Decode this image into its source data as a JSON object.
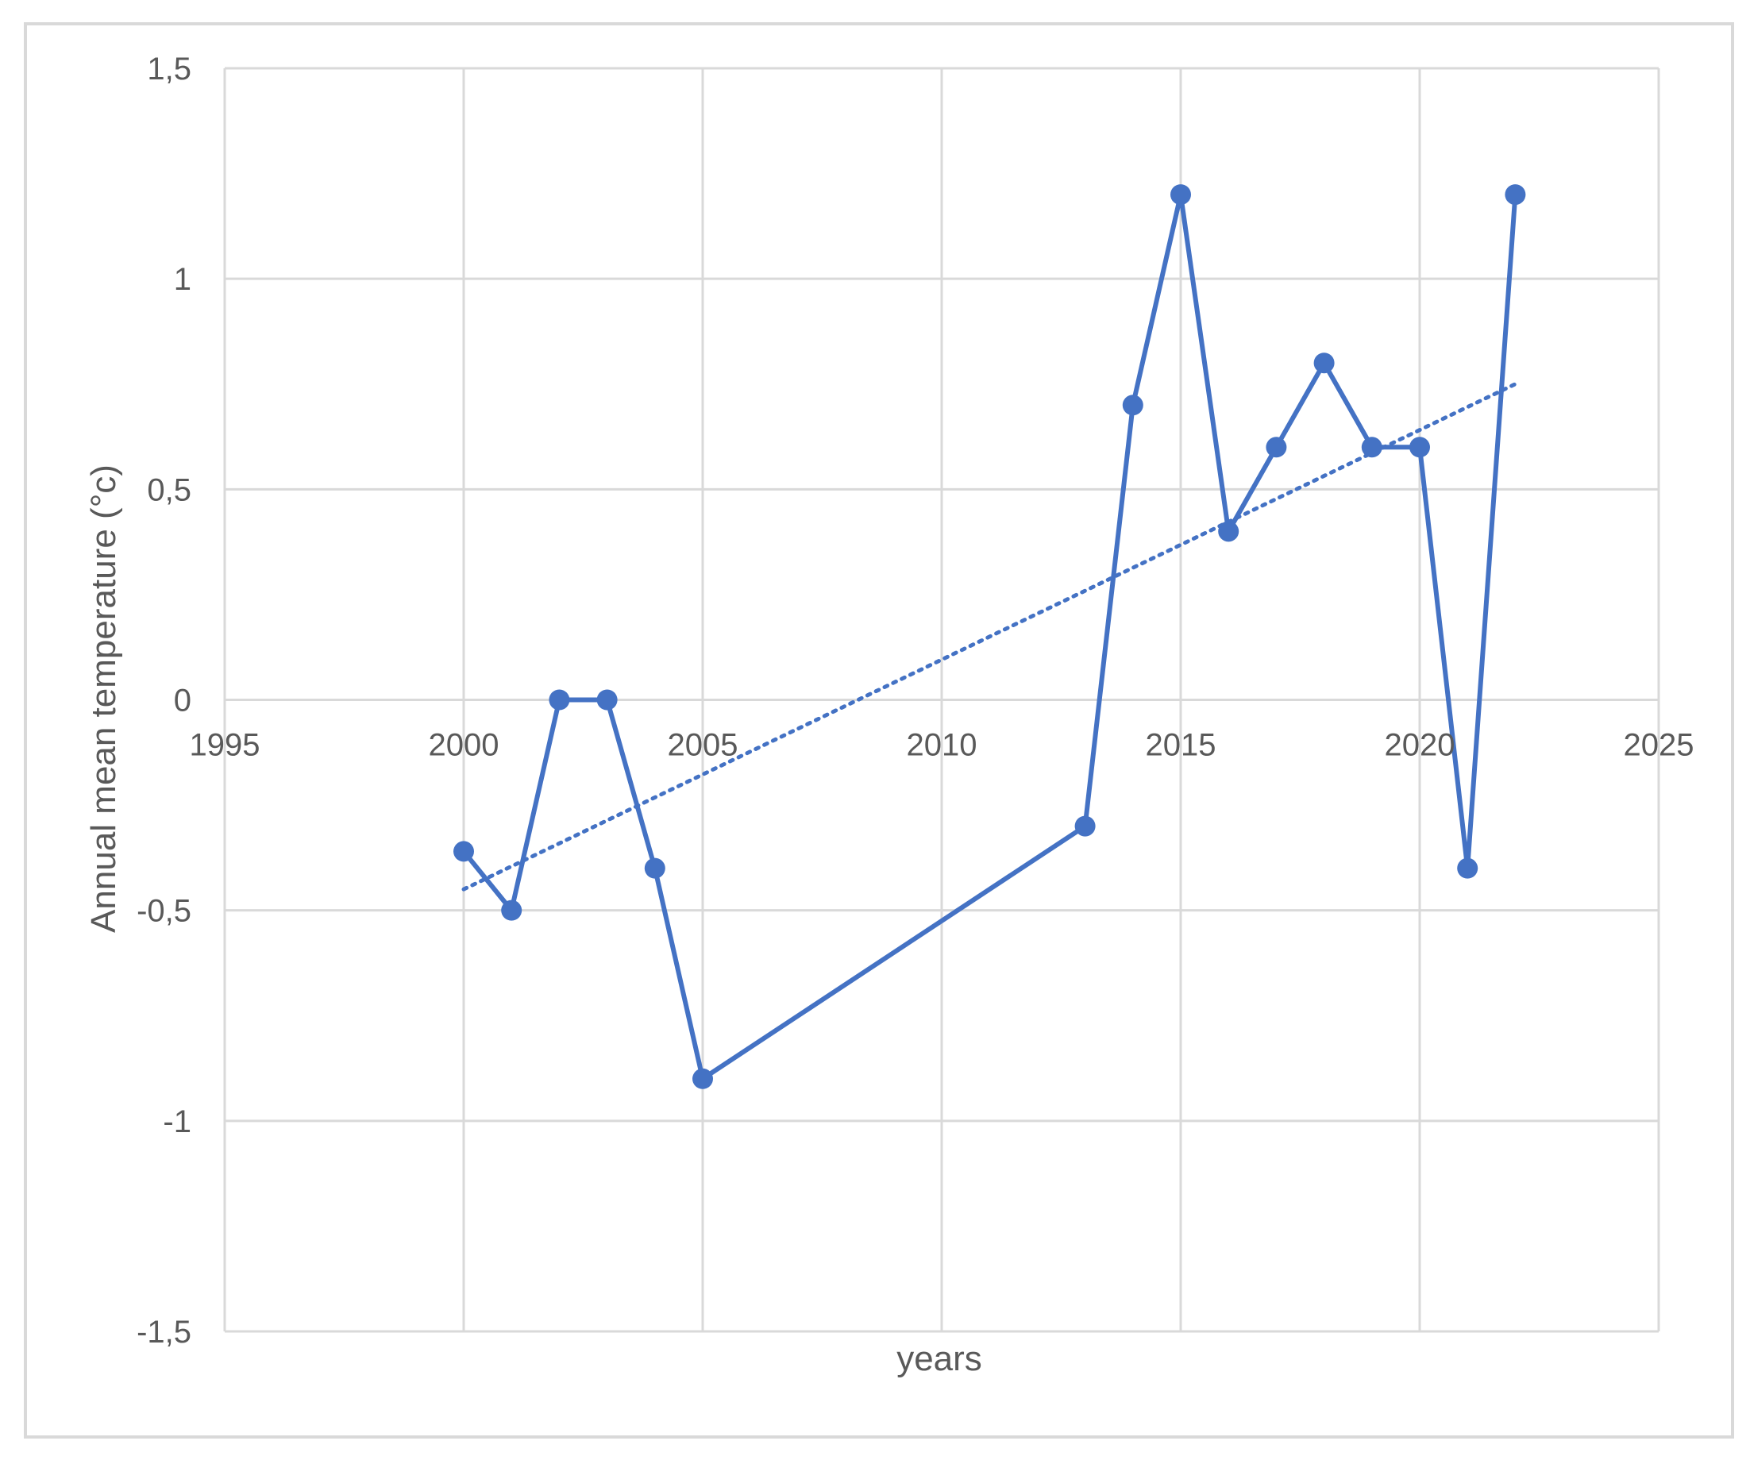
{
  "chart_data": {
    "type": "scatter",
    "title": "",
    "xlabel": "years",
    "ylabel": "Annual mean  temperature (°c)",
    "xlim": [
      1995,
      2025
    ],
    "ylim": [
      -1.5,
      1.5
    ],
    "x_ticks": [
      1995,
      2000,
      2005,
      2010,
      2015,
      2020,
      2025
    ],
    "x_tick_labels": [
      "1995",
      "2000",
      "2005",
      "2010",
      "2015",
      "2020",
      "2025"
    ],
    "y_ticks": [
      1.5,
      1,
      0.5,
      0,
      -0.5,
      -1,
      -1.5
    ],
    "y_tick_labels": [
      "1,5",
      "1",
      "0,5",
      "0",
      "-0,5",
      "-1",
      "-1,5"
    ],
    "grid": true,
    "legend": "none",
    "series": [
      {
        "style": "lines-and-markers",
        "color": "#4472C4",
        "x": [
          2000,
          2001,
          2002,
          2003,
          2004,
          2005,
          2013,
          2014,
          2015,
          2016,
          2017,
          2018,
          2019,
          2020,
          2021,
          2022
        ],
        "y": [
          -0.36,
          -0.5,
          0,
          0,
          -0.4,
          -0.9,
          -0.3,
          0.7,
          1.2,
          0.4,
          0.6,
          0.8,
          0.6,
          0.6,
          -0.4,
          1.2
        ]
      }
    ],
    "trendline": {
      "type": "linear",
      "style": "dotted",
      "color": "#4472C4",
      "x": [
        2000,
        2022
      ],
      "y": [
        -0.45,
        0.75
      ]
    }
  }
}
